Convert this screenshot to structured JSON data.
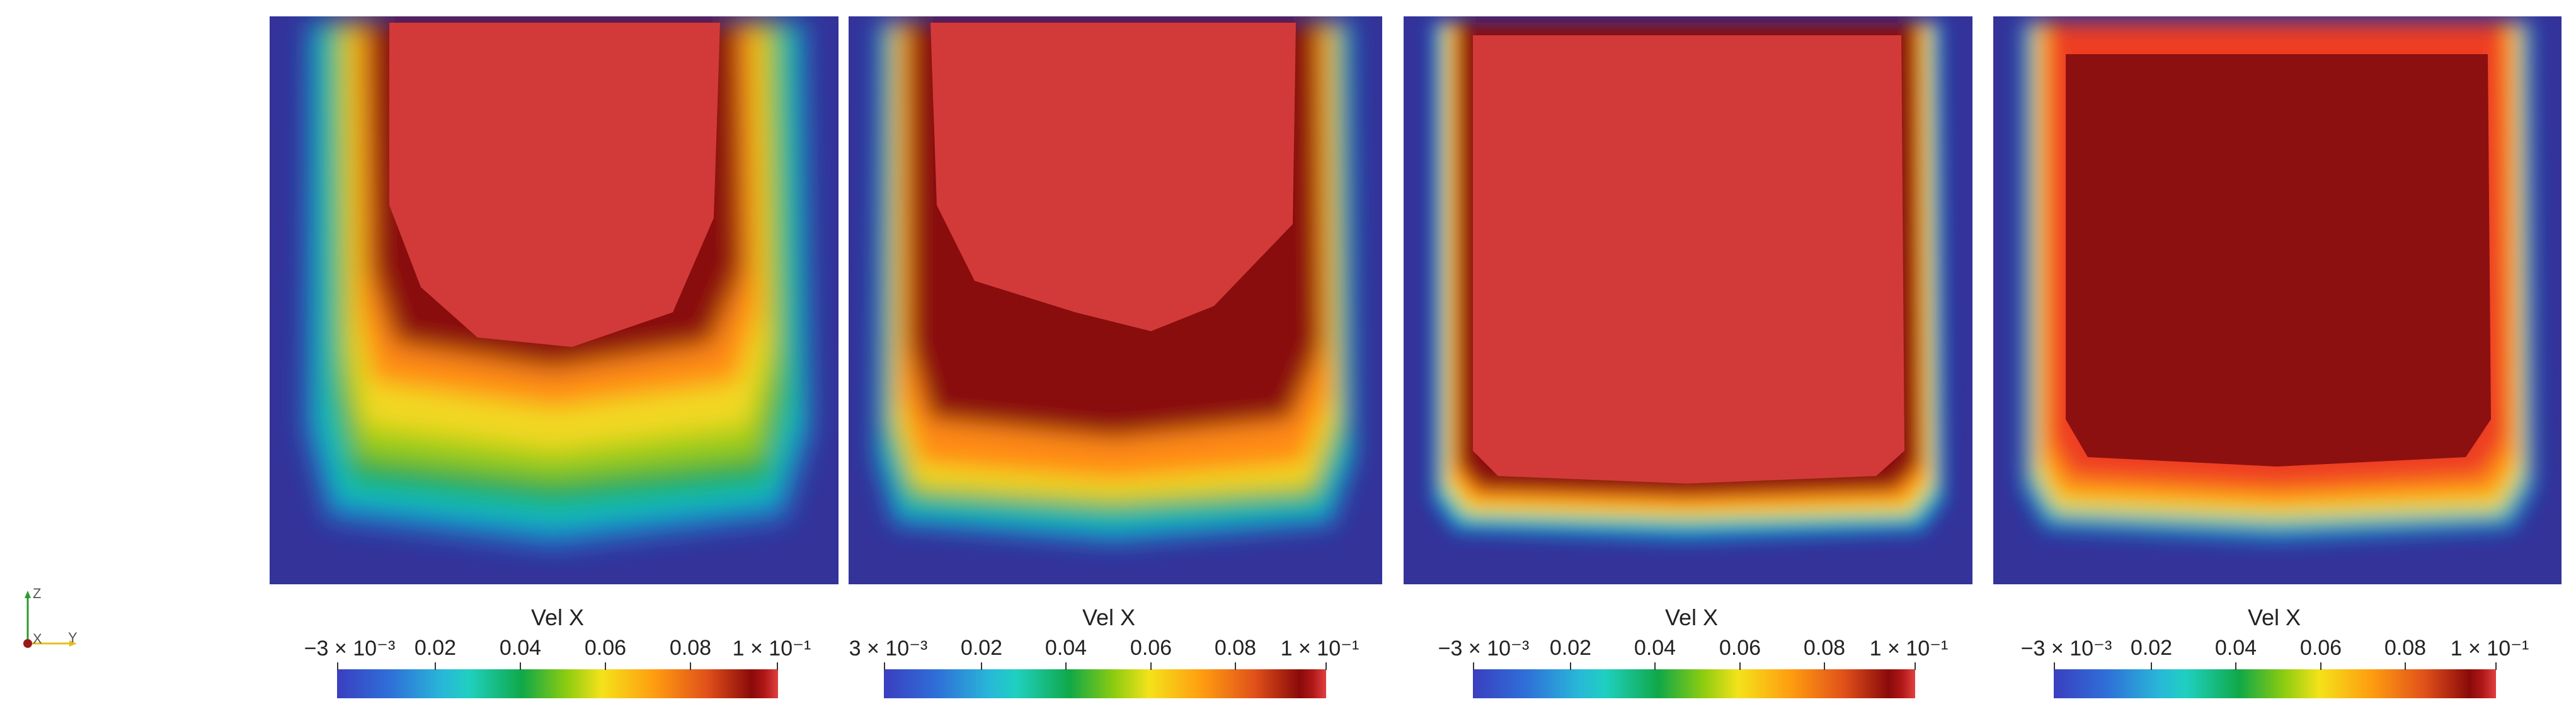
{
  "panels": [
    {
      "field": "Vel X",
      "ticks": [
        "−3 × 10⁻³",
        "0.02",
        "0.04",
        "0.06",
        "0.08",
        "1 × 10⁻¹"
      ]
    },
    {
      "field": "Vel X",
      "ticks": [
        "3 × 10⁻³",
        "0.02",
        "0.04",
        "0.06",
        "0.08",
        "1 × 10⁻¹"
      ]
    },
    {
      "field": "Vel X",
      "ticks": [
        "−3 × 10⁻³",
        "0.02",
        "0.04",
        "0.06",
        "0.08",
        "1 × 10⁻¹"
      ]
    },
    {
      "field": "Vel X",
      "ticks": [
        "−3 × 10⁻³",
        "0.02",
        "0.04",
        "0.06",
        "0.08",
        "1 × 10⁻¹"
      ]
    }
  ],
  "colormap": {
    "min_color": "#3a3fc0",
    "mid_color": "#f4e21a",
    "max_color": "#e24040",
    "background": "#33339a"
  },
  "orientation_axes": {
    "z": "Z",
    "x": "X",
    "y": "Y"
  }
}
